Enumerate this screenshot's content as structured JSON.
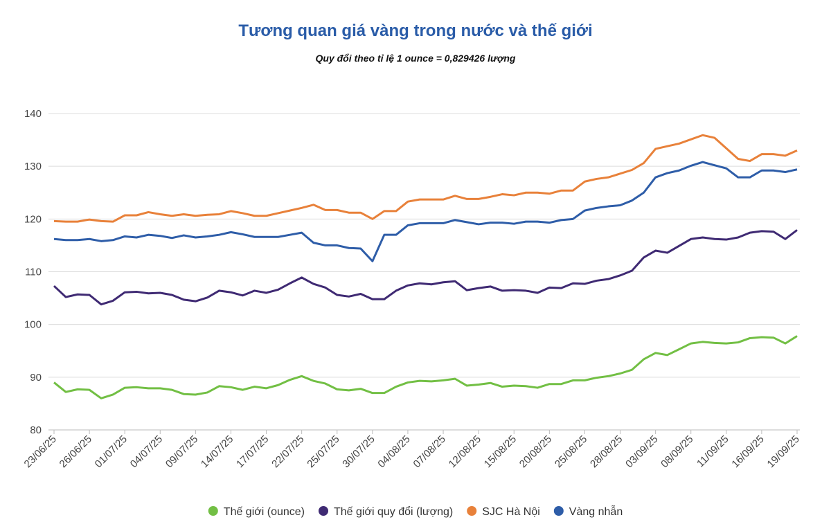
{
  "chart_data": {
    "type": "line",
    "title": "Tương quan giá vàng trong nước và thế giới",
    "subtitle": "Quy đổi theo tỉ lệ 1 ounce = 0,829426 lượng",
    "categories": [
      "23/06/25",
      null,
      null,
      "26/06/25",
      null,
      null,
      "01/07/25",
      null,
      null,
      "04/07/25",
      null,
      null,
      "09/07/25",
      null,
      null,
      "14/07/25",
      null,
      null,
      "17/07/25",
      null,
      null,
      "22/07/25",
      null,
      null,
      "25/07/25",
      null,
      null,
      "30/07/25",
      null,
      null,
      "04/08/25",
      null,
      null,
      "07/08/25",
      null,
      null,
      "12/08/25",
      null,
      null,
      "15/08/25",
      null,
      null,
      "20/08/25",
      null,
      null,
      "25/08/25",
      null,
      null,
      "28/08/25",
      null,
      null,
      "03/09/25",
      null,
      null,
      "08/09/25",
      null,
      null,
      "11/09/25",
      null,
      null,
      "16/09/25",
      null,
      null,
      "19/09/25"
    ],
    "series": [
      {
        "name": "Thế giới (ounce)",
        "color": "#72bf44",
        "values": [
          89.0,
          87.2,
          87.7,
          87.6,
          86.0,
          86.7,
          88.0,
          88.1,
          87.9,
          87.9,
          87.6,
          86.8,
          86.7,
          87.1,
          88.3,
          88.1,
          87.6,
          88.2,
          87.9,
          88.5,
          89.5,
          90.2,
          89.3,
          88.8,
          87.7,
          87.5,
          87.8,
          87.0,
          87.0,
          88.2,
          89.0,
          89.3,
          89.2,
          89.4,
          89.7,
          88.4,
          88.6,
          88.9,
          88.2,
          88.4,
          88.3,
          88.0,
          88.7,
          88.7,
          89.4,
          89.4,
          89.9,
          90.2,
          90.7,
          91.4,
          93.4,
          94.6,
          94.2,
          95.3,
          96.4,
          96.7,
          96.5,
          96.4,
          96.6,
          97.4,
          97.6,
          97.5,
          96.4,
          97.8
        ]
      },
      {
        "name": "Thế giới quy đổi (lượng)",
        "color": "#3f2a73",
        "values": [
          107.3,
          105.2,
          105.7,
          105.6,
          103.8,
          104.5,
          106.1,
          106.2,
          105.9,
          106.0,
          105.6,
          104.7,
          104.4,
          105.1,
          106.4,
          106.1,
          105.5,
          106.4,
          106.0,
          106.6,
          107.8,
          108.9,
          107.7,
          107.0,
          105.6,
          105.3,
          105.8,
          104.8,
          104.8,
          106.4,
          107.4,
          107.8,
          107.6,
          108.0,
          108.2,
          106.5,
          106.9,
          107.2,
          106.4,
          106.5,
          106.4,
          106.0,
          107.0,
          106.9,
          107.8,
          107.7,
          108.3,
          108.6,
          109.3,
          110.2,
          112.7,
          114.0,
          113.6,
          114.9,
          116.2,
          116.5,
          116.2,
          116.1,
          116.5,
          117.4,
          117.7,
          117.6,
          116.2,
          117.9
        ]
      },
      {
        "name": "SJC Hà Nội",
        "color": "#e8813a",
        "values": [
          119.6,
          119.5,
          119.5,
          119.9,
          119.6,
          119.5,
          120.7,
          120.7,
          121.3,
          120.9,
          120.6,
          120.9,
          120.6,
          120.8,
          120.9,
          121.5,
          121.1,
          120.6,
          120.6,
          121.1,
          121.6,
          122.1,
          122.7,
          121.7,
          121.7,
          121.2,
          121.2,
          120.0,
          121.5,
          121.5,
          123.3,
          123.7,
          123.7,
          123.7,
          124.4,
          123.8,
          123.8,
          124.2,
          124.7,
          124.5,
          125.0,
          125.0,
          124.8,
          125.4,
          125.4,
          127.1,
          127.6,
          127.9,
          128.6,
          129.3,
          130.6,
          133.3,
          133.8,
          134.3,
          135.1,
          135.9,
          135.4,
          133.4,
          131.4,
          131.0,
          132.3,
          132.3,
          132.0,
          133.0
        ]
      },
      {
        "name": "Vàng nhẫn",
        "color": "#2e5da8",
        "values": [
          116.2,
          116.0,
          116.0,
          116.2,
          115.8,
          116.0,
          116.7,
          116.5,
          117.0,
          116.8,
          116.4,
          116.9,
          116.5,
          116.7,
          117.0,
          117.5,
          117.1,
          116.6,
          116.6,
          116.6,
          117.0,
          117.4,
          115.5,
          115.0,
          115.0,
          114.5,
          114.4,
          112.0,
          117.0,
          117.0,
          118.8,
          119.2,
          119.2,
          119.2,
          119.8,
          119.4,
          119.0,
          119.3,
          119.3,
          119.1,
          119.5,
          119.5,
          119.3,
          119.8,
          120.0,
          121.6,
          122.1,
          122.4,
          122.6,
          123.5,
          125.0,
          127.9,
          128.7,
          129.2,
          130.1,
          130.8,
          130.2,
          129.6,
          127.9,
          127.9,
          129.2,
          129.2,
          128.9,
          129.4
        ]
      }
    ],
    "ylim": [
      80,
      140
    ],
    "yticks": [
      80,
      90,
      100,
      110,
      120,
      130,
      140
    ],
    "grid": true
  }
}
